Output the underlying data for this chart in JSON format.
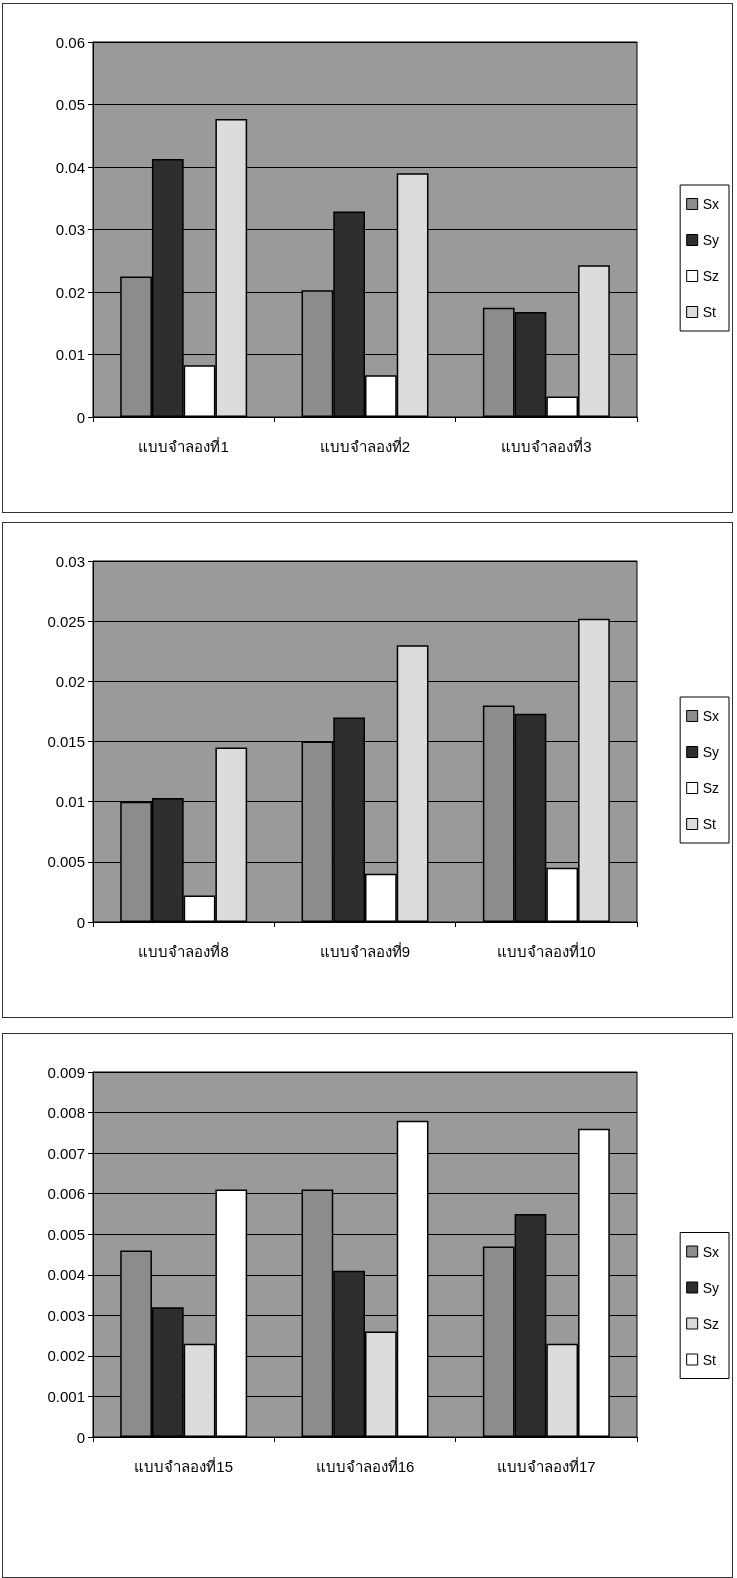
{
  "chart_data": [
    {
      "type": "bar",
      "categories": [
        "แบบจำลองที่1",
        "แบบจำลองที่2",
        "แบบจำลองที่3"
      ],
      "ylim": [
        0,
        0.06
      ],
      "yticks": [
        0,
        0.01,
        0.02,
        0.03,
        0.04,
        0.05,
        0.06
      ],
      "grid": "y",
      "legend": "right",
      "series": [
        {
          "name": "Sx",
          "color": "#8c8c8c",
          "values": [
            0.0225,
            0.0203,
            0.0175
          ]
        },
        {
          "name": "Sy",
          "color": "#2e2e2e",
          "values": [
            0.0413,
            0.0329,
            0.0168
          ]
        },
        {
          "name": "Sz",
          "color": "#ffffff",
          "values": [
            0.0083,
            0.0067,
            0.0033
          ]
        },
        {
          "name": "St",
          "color": "#dcdcdc",
          "values": [
            0.0477,
            0.039,
            0.0243
          ]
        }
      ]
    },
    {
      "type": "bar",
      "categories": [
        "แบบจำลองที่8",
        "แบบจำลองที่9",
        "แบบจำลองที่10"
      ],
      "ylim": [
        0,
        0.03
      ],
      "yticks": [
        0,
        0.005,
        0.01,
        0.015,
        0.02,
        0.025,
        0.03
      ],
      "grid": "y",
      "legend": "right",
      "series": [
        {
          "name": "Sx",
          "color": "#8c8c8c",
          "values": [
            0.01,
            0.015,
            0.018
          ]
        },
        {
          "name": "Sy",
          "color": "#2e2e2e",
          "values": [
            0.0103,
            0.017,
            0.0173
          ]
        },
        {
          "name": "Sz",
          "color": "#ffffff",
          "values": [
            0.0022,
            0.004,
            0.0045
          ]
        },
        {
          "name": "St",
          "color": "#dcdcdc",
          "values": [
            0.0145,
            0.023,
            0.0252
          ]
        }
      ]
    },
    {
      "type": "bar",
      "categories": [
        "แบบจำลองที่15",
        "แบบจำลองที่16",
        "แบบจำลองที่17"
      ],
      "ylim": [
        0,
        0.009
      ],
      "yticks": [
        0,
        0.001,
        0.002,
        0.003,
        0.004,
        0.005,
        0.006,
        0.007,
        0.008,
        0.009
      ],
      "grid": "y",
      "legend": "right",
      "series": [
        {
          "name": "Sx",
          "color": "#8c8c8c",
          "values": [
            0.0046,
            0.0061,
            0.0047
          ]
        },
        {
          "name": "Sy",
          "color": "#2e2e2e",
          "values": [
            0.0032,
            0.0041,
            0.0055
          ]
        },
        {
          "name": "Sz",
          "color": "#dcdcdc",
          "values": [
            0.0023,
            0.0026,
            0.0023
          ]
        },
        {
          "name": "St",
          "color": "#ffffff",
          "values": [
            0.0061,
            0.0078,
            0.0076
          ]
        }
      ]
    }
  ]
}
